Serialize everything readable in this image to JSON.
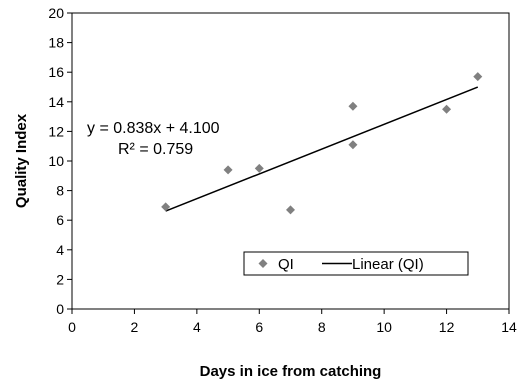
{
  "chart_data": {
    "type": "scatter",
    "title": "",
    "xlabel": "Days in ice from catching",
    "ylabel": "Quality Index",
    "xlim": [
      0,
      14
    ],
    "ylim": [
      0,
      20
    ],
    "x_ticks": [
      0,
      2,
      4,
      6,
      8,
      10,
      12,
      14
    ],
    "y_ticks": [
      0,
      2,
      4,
      6,
      8,
      10,
      12,
      14,
      16,
      18,
      20
    ],
    "grid": false,
    "legend_position": "bottom-right inside plot",
    "series": [
      {
        "name": "QI",
        "marker": "diamond",
        "color": "#808080",
        "x": [
          3,
          5,
          6,
          7,
          9,
          9,
          12,
          13
        ],
        "y": [
          6.9,
          9.4,
          9.5,
          6.7,
          13.7,
          11.1,
          13.5,
          15.7
        ]
      }
    ],
    "trendline": {
      "name": "Linear (QI)",
      "color": "#000000",
      "slope": 0.838,
      "intercept": 4.1,
      "x_range": [
        3,
        13
      ],
      "equation_text": "y = 0.838x + 4.100",
      "r2_text": "R² = 0.759"
    }
  }
}
